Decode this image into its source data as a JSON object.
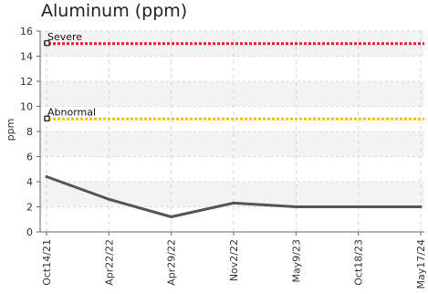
{
  "chart_data": {
    "type": "line",
    "title": "Aluminum (ppm)",
    "ylabel": "ppm",
    "xlabel": "",
    "ylim": [
      0,
      16
    ],
    "yticks": [
      0,
      2,
      4,
      6,
      8,
      10,
      12,
      14,
      16
    ],
    "grid": true,
    "categories": [
      "Oct14/21",
      "Apr22/22",
      "Apr29/22",
      "Nov2/22",
      "May9/23",
      "Oct18/23",
      "May17/24"
    ],
    "series": [
      {
        "values": [
          4.4,
          2.6,
          1.2,
          2.3,
          2.0,
          2.0,
          2.0
        ],
        "color": "#555555"
      }
    ],
    "thresholds": [
      {
        "label": "Severe",
        "value": 15,
        "color": "#e8202a"
      },
      {
        "label": "Abnormal",
        "value": 9,
        "color": "#f2c500"
      }
    ]
  }
}
